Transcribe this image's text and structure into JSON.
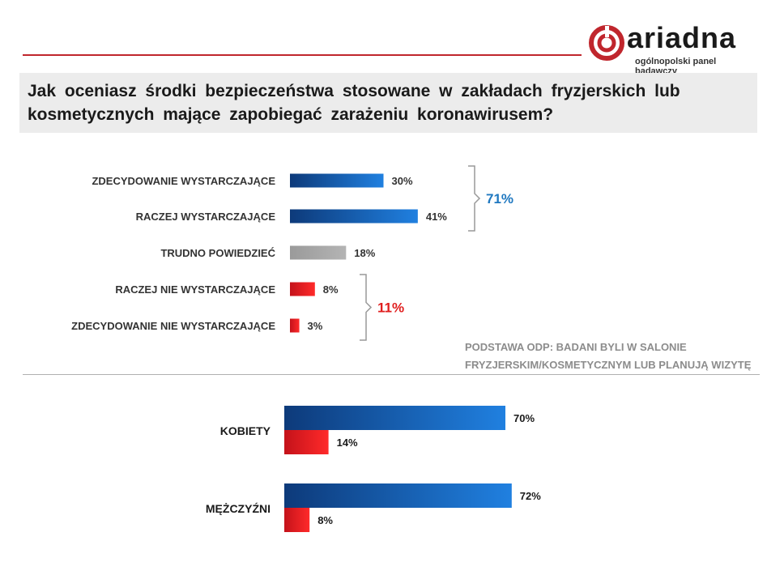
{
  "logo": {
    "name": "ariadna",
    "tagline": "ogólnopolski panel badawczy"
  },
  "question": "Jak oceniasz środki bezpieczeństwa stosowane w zakładach fryzjerskich lub kosmetycznych mające zapobiegać zarażeniu koronawirusem?",
  "note": {
    "line1": "PODSTAWA ODP: BADANI BYLI W SALONIE",
    "line2": "FRYZJERSKIM/KOSMETYCZNYM LUB PLANUJĄ WIZYTĘ"
  },
  "chart_data": [
    {
      "type": "bar",
      "orientation": "horizontal",
      "categories": [
        "ZDECYDOWANIE  WYSTARCZAJĄCE",
        "RACZEJ WYSTARCZAJĄCE",
        "TRUDNO  POWIEDZIEĆ",
        "RACZEJ  NIE WYSTARCZAJĄCE",
        "ZDECYDOWANIE  NIE WYSTARCZAJĄCE"
      ],
      "values": [
        30,
        41,
        18,
        8,
        3
      ],
      "labels": [
        "30%",
        "41%",
        "18%",
        "8%",
        "3%"
      ],
      "colors": [
        "#1c64b8",
        "#1c64b8",
        "#a6a6a6",
        "#e01e1e",
        "#e01e1e"
      ],
      "groups": [
        {
          "label": "71%",
          "rows": [
            0,
            1
          ],
          "color": "#1f78c0"
        },
        {
          "label": "11%",
          "rows": [
            3,
            4
          ],
          "color": "#e01e1e"
        }
      ]
    },
    {
      "type": "bar",
      "orientation": "horizontal",
      "categories": [
        "KOBIETY",
        "MĘŻCZYŹNI"
      ],
      "series": [
        {
          "values": [
            70,
            72
          ],
          "labels": [
            "70%",
            "72%"
          ],
          "color": "#1c64b8"
        },
        {
          "values": [
            14,
            8
          ],
          "labels": [
            "14%",
            "8%"
          ],
          "color": "#e01e1e"
        }
      ]
    }
  ]
}
